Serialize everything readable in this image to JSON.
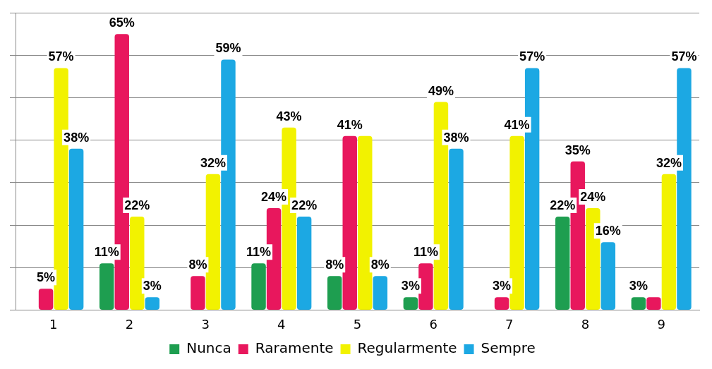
{
  "chart_data": {
    "type": "bar",
    "categories": [
      "1",
      "2",
      "3",
      "4",
      "5",
      "6",
      "7",
      "8",
      "9"
    ],
    "series": [
      {
        "name": "Nunca",
        "color": "#1e9e50",
        "values": [
          null,
          11,
          null,
          11,
          8,
          3,
          null,
          22,
          3
        ],
        "value_labels": [
          null,
          "11%",
          null,
          "11%",
          "8%",
          "3%",
          null,
          "22%",
          "3%"
        ]
      },
      {
        "name": "Raramente",
        "color": "#e8175d",
        "values": [
          5,
          65,
          8,
          24,
          41,
          11,
          3,
          35,
          3
        ],
        "value_labels": [
          "5%",
          "65%",
          "8%",
          "24%",
          "41%",
          "11%",
          "3%",
          "35%",
          null
        ]
      },
      {
        "name": "Regularmente",
        "color": "#f2f200",
        "values": [
          57,
          22,
          32,
          43,
          41,
          49,
          41,
          24,
          32
        ],
        "value_labels": [
          "57%",
          "22%",
          "32%",
          "43%",
          null,
          "49%",
          "41%",
          "24%",
          "32%"
        ]
      },
      {
        "name": "Sempre",
        "color": "#1ca8e3",
        "values": [
          38,
          3,
          59,
          22,
          8,
          38,
          57,
          16,
          57
        ],
        "value_labels": [
          "38%",
          "3%",
          "59%",
          "22%",
          "8%",
          "38%",
          "57%",
          "16%",
          "57%"
        ]
      }
    ],
    "ylim": [
      0,
      70
    ],
    "yticks": [
      {
        "value": 0,
        "label": null
      },
      {
        "value": 10,
        "label": null
      },
      {
        "value": 20,
        "label": null
      },
      {
        "value": 30,
        "label": null
      },
      {
        "value": 40,
        "label": null
      },
      {
        "value": 50,
        "label": null
      },
      {
        "value": 60,
        "label": null
      },
      {
        "value": 70,
        "label": null
      }
    ],
    "tick_labels": "x",
    "grid": "y",
    "legend": "bottom"
  }
}
